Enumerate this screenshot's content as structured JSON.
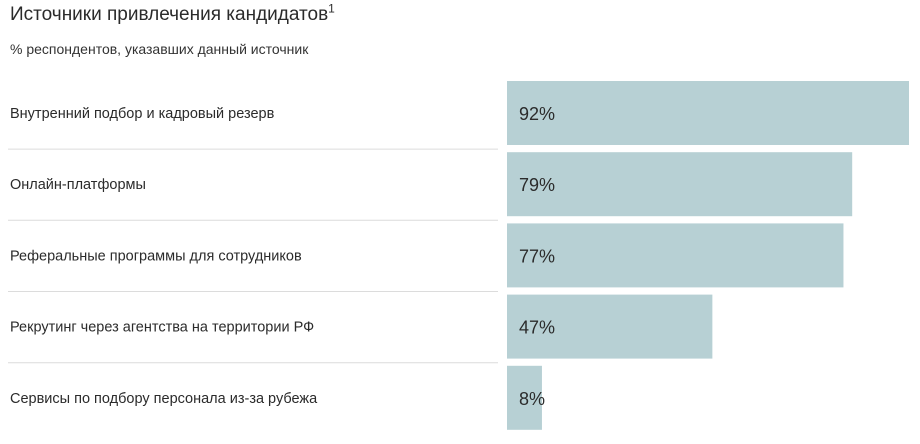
{
  "chart": {
    "title": "Источники привлечения кандидатов",
    "title_footnote": "1",
    "subtitle": "% респондентов, указавших данный источник"
  },
  "chart_data": {
    "type": "bar",
    "orientation": "horizontal",
    "title": "Источники привлечения кандидатов",
    "subtitle": "% респондентов, указавших данный источник",
    "categories": [
      "Внутренний подбор и кадровый резерв",
      "Онлайн-платформы",
      "Реферальные программы для сотрудников",
      "Рекрутинг через агентства на территории РФ",
      "Сервисы по подбору персонала из-за рубежа"
    ],
    "values": [
      92,
      79,
      77,
      47,
      8
    ],
    "value_labels": [
      "92%",
      "79%",
      "77%",
      "47%",
      "8%"
    ],
    "unit": "%",
    "xlim": [
      0,
      92
    ],
    "grid": false,
    "legend": "none",
    "colors": {
      "bar": "#b7d0d4",
      "separator": "#dcdcdc",
      "text": "#2b2b2b"
    }
  }
}
